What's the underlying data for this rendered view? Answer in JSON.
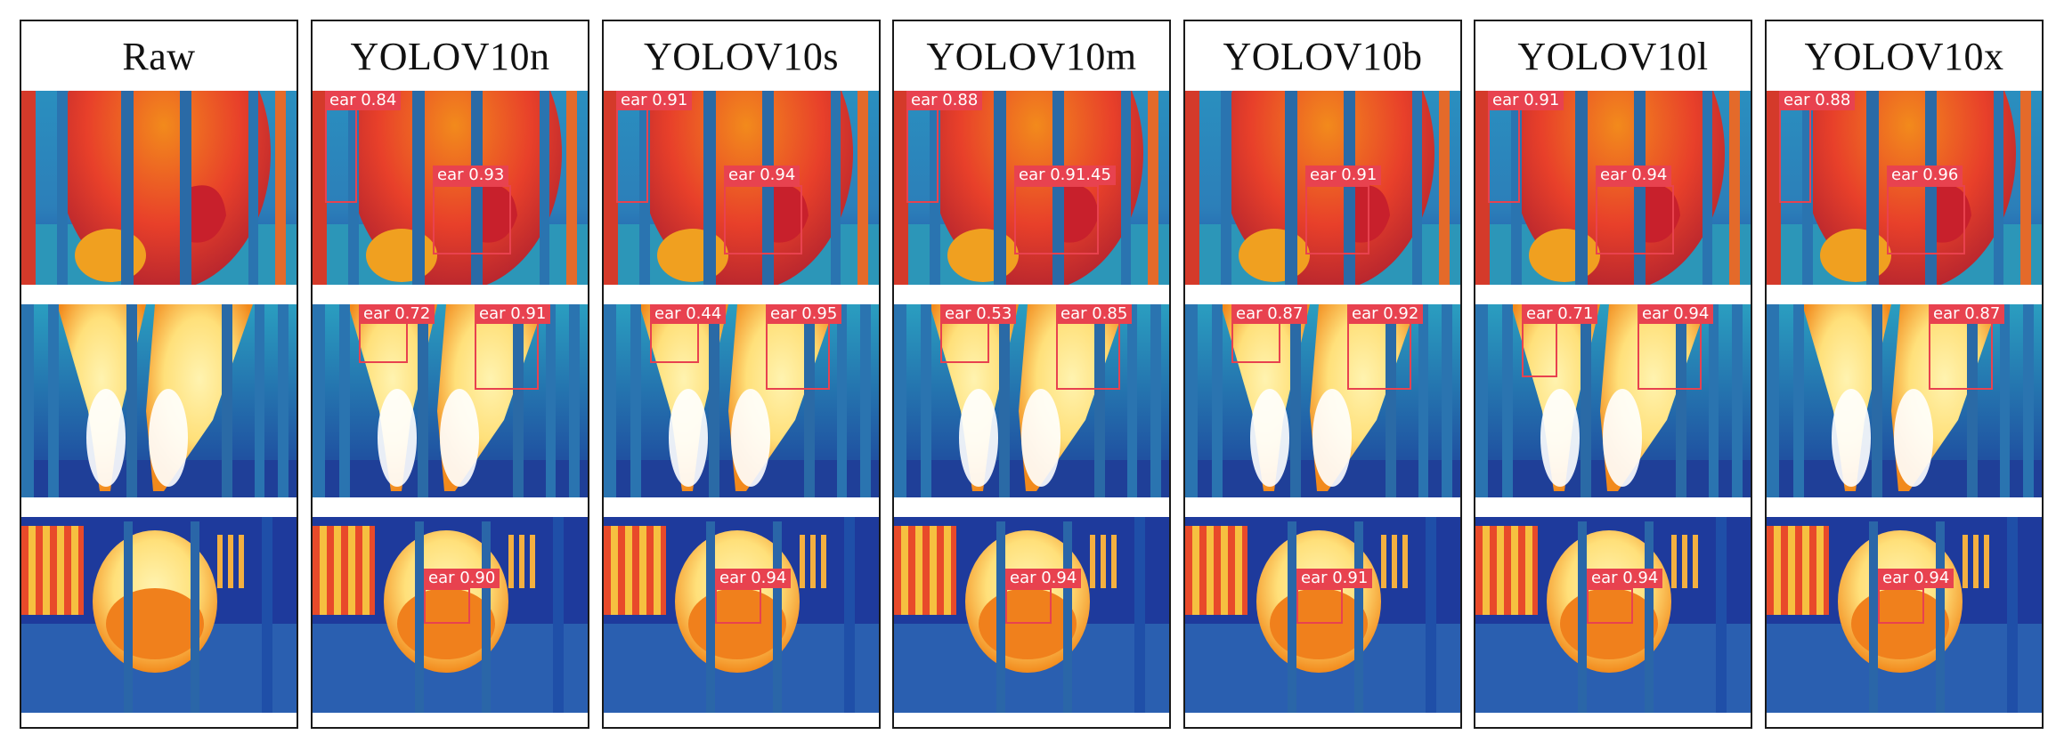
{
  "figure": {
    "columns": [
      {
        "header": "Raw",
        "rows": [
          {
            "detections": []
          },
          {
            "detections": []
          },
          {
            "detections": []
          }
        ]
      },
      {
        "header": "YOLOV10n",
        "rows": [
          {
            "detections": [
              {
                "label": "ear",
                "confidence": "0.84"
              },
              {
                "label": "ear",
                "confidence": "0.93"
              }
            ]
          },
          {
            "detections": [
              {
                "label": "ear",
                "confidence": "0.72"
              },
              {
                "label": "ear",
                "confidence": "0.91"
              }
            ]
          },
          {
            "detections": [
              {
                "label": "ear",
                "confidence": "0.90"
              }
            ]
          }
        ]
      },
      {
        "header": "YOLOV10s",
        "rows": [
          {
            "detections": [
              {
                "label": "ear",
                "confidence": "0.91"
              },
              {
                "label": "ear",
                "confidence": "0.94"
              }
            ]
          },
          {
            "detections": [
              {
                "label": "ear",
                "confidence": "0.44"
              },
              {
                "label": "ear",
                "confidence": "0.95"
              }
            ]
          },
          {
            "detections": [
              {
                "label": "ear",
                "confidence": "0.94"
              }
            ]
          }
        ]
      },
      {
        "header": "YOLOV10m",
        "rows": [
          {
            "detections": [
              {
                "label": "ear",
                "confidence": "0.88"
              },
              {
                "label": "ear",
                "confidence": "0.91.45"
              }
            ]
          },
          {
            "detections": [
              {
                "label": "ear",
                "confidence": "0.53"
              },
              {
                "label": "ear",
                "confidence": "0.85"
              }
            ]
          },
          {
            "detections": [
              {
                "label": "ear",
                "confidence": "0.94"
              }
            ]
          }
        ]
      },
      {
        "header": "YOLOV10b",
        "rows": [
          {
            "detections": [
              {
                "label": "ear",
                "confidence": "0.91"
              }
            ]
          },
          {
            "detections": [
              {
                "label": "ear",
                "confidence": "0.87"
              },
              {
                "label": "ear",
                "confidence": "0.92"
              }
            ]
          },
          {
            "detections": [
              {
                "label": "ear",
                "confidence": "0.91"
              }
            ]
          }
        ]
      },
      {
        "header": "YOLOV10l",
        "rows": [
          {
            "detections": [
              {
                "label": "ear",
                "confidence": "0.91"
              },
              {
                "label": "ear",
                "confidence": "0.94"
              }
            ]
          },
          {
            "detections": [
              {
                "label": "ear",
                "confidence": "0.71"
              },
              {
                "label": "ear",
                "confidence": "0.94"
              }
            ]
          },
          {
            "detections": [
              {
                "label": "ear",
                "confidence": "0.94"
              }
            ]
          }
        ]
      },
      {
        "header": "YOLOV10x",
        "rows": [
          {
            "detections": [
              {
                "label": "ear",
                "confidence": "0.88"
              },
              {
                "label": "ear",
                "confidence": "0.96"
              }
            ]
          },
          {
            "detections": [
              {
                "label": "ear",
                "confidence": "0.87"
              }
            ]
          },
          {
            "detections": [
              {
                "label": "ear",
                "confidence": "0.94"
              }
            ]
          }
        ]
      }
    ],
    "colors": {
      "box": "#e8424f",
      "panel_border": "#1a1a1a",
      "thermal_cold": "#1f4fa8",
      "thermal_cool": "#2a8fbf",
      "thermal_mid": "#e8402a",
      "thermal_warm": "#f28a1c",
      "thermal_hot": "#fff3b0"
    }
  }
}
